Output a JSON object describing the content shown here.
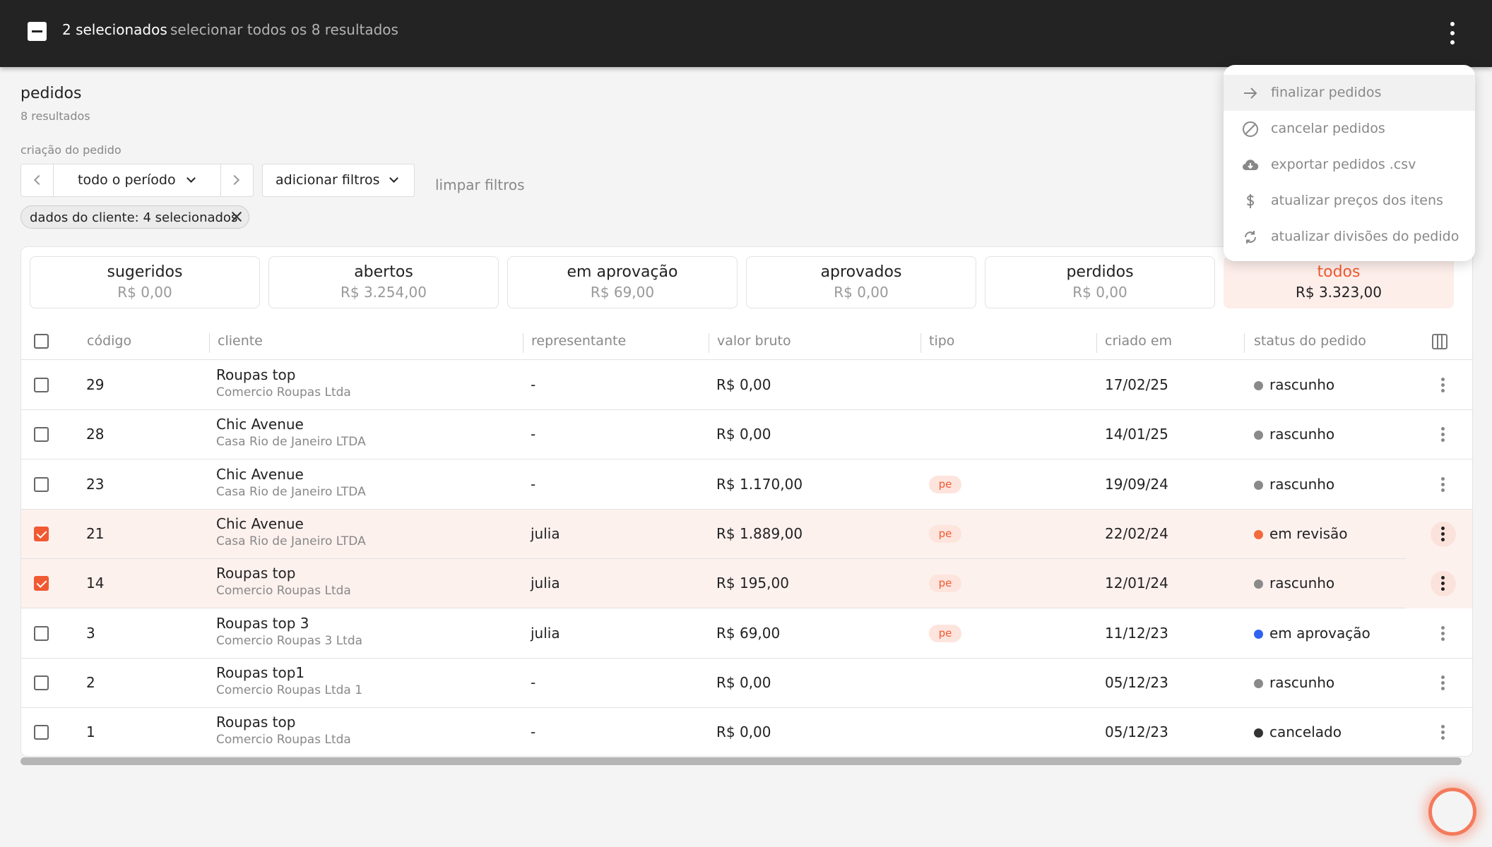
{
  "selection_bar": {
    "selected_count": "2 selecionados",
    "select_all": "selecionar todos os 8 resultados"
  },
  "header": {
    "title": "pedidos",
    "results": "8 resultados"
  },
  "filters": {
    "label": "criação do pedido",
    "period": "todo o período",
    "add_filters": "adicionar filtros",
    "clear": "limpar filtros",
    "chip": "dados do cliente: 4 selecionados"
  },
  "tabs": [
    {
      "name": "sugeridos",
      "value": "R$ 0,00"
    },
    {
      "name": "abertos",
      "value": "R$ 3.254,00"
    },
    {
      "name": "em aprovação",
      "value": "R$ 69,00"
    },
    {
      "name": "aprovados",
      "value": "R$ 0,00"
    },
    {
      "name": "perdidos",
      "value": "R$ 0,00"
    },
    {
      "name": "todos",
      "value": "R$ 3.323,00"
    }
  ],
  "columns": {
    "code": "código",
    "client": "cliente",
    "rep": "representante",
    "gross": "valor bruto",
    "type": "tipo",
    "created": "criado em",
    "status": "status do pedido"
  },
  "rows": [
    {
      "code": "29",
      "client": "Roupas top",
      "company": "Comercio Roupas Ltda",
      "rep": "-",
      "gross": "R$ 0,00",
      "type": "",
      "created": "17/02/25",
      "status": "rascunho",
      "status_color": "#8a8a8a",
      "selected": false
    },
    {
      "code": "28",
      "client": "Chic Avenue",
      "company": "Casa Rio de Janeiro LTDA",
      "rep": "-",
      "gross": "R$ 0,00",
      "type": "",
      "created": "14/01/25",
      "status": "rascunho",
      "status_color": "#8a8a8a",
      "selected": false
    },
    {
      "code": "23",
      "client": "Chic Avenue",
      "company": "Casa Rio de Janeiro LTDA",
      "rep": "-",
      "gross": "R$ 1.170,00",
      "type": "pe",
      "created": "19/09/24",
      "status": "rascunho",
      "status_color": "#8a8a8a",
      "selected": false
    },
    {
      "code": "21",
      "client": "Chic Avenue",
      "company": "Casa Rio de Janeiro LTDA",
      "rep": "julia",
      "gross": "R$ 1.889,00",
      "type": "pe",
      "created": "22/02/24",
      "status": "em revisão",
      "status_color": "#f26a3d",
      "selected": true
    },
    {
      "code": "14",
      "client": "Roupas top",
      "company": "Comercio Roupas Ltda",
      "rep": "julia",
      "gross": "R$ 195,00",
      "type": "pe",
      "created": "12/01/24",
      "status": "rascunho",
      "status_color": "#8a8a8a",
      "selected": true
    },
    {
      "code": "3",
      "client": "Roupas top 3",
      "company": "Comercio Roupas 3 Ltda",
      "rep": "julia",
      "gross": "R$ 69,00",
      "type": "pe",
      "created": "11/12/23",
      "status": "em aprovação",
      "status_color": "#2f62f0",
      "selected": false
    },
    {
      "code": "2",
      "client": "Roupas top1",
      "company": "Comercio Roupas Ltda 1",
      "rep": "-",
      "gross": "R$ 0,00",
      "type": "",
      "created": "05/12/23",
      "status": "rascunho",
      "status_color": "#8a8a8a",
      "selected": false
    },
    {
      "code": "1",
      "client": "Roupas top",
      "company": "Comercio Roupas Ltda",
      "rep": "-",
      "gross": "R$ 0,00",
      "type": "",
      "created": "05/12/23",
      "status": "cancelado",
      "status_color": "#333333",
      "selected": false
    }
  ],
  "menu": [
    {
      "label": "finalizar pedidos",
      "icon": "arrow-right-icon"
    },
    {
      "label": "cancelar pedidos",
      "icon": "block-icon"
    },
    {
      "label": "exportar pedidos .csv",
      "icon": "cloud-download-icon"
    },
    {
      "label": "atualizar preços dos itens",
      "icon": "dollar-icon"
    },
    {
      "label": "atualizar divisões do pedido",
      "icon": "sync-icon"
    }
  ],
  "colors": {
    "accent": "#f05a32",
    "topbar": "#232323"
  }
}
